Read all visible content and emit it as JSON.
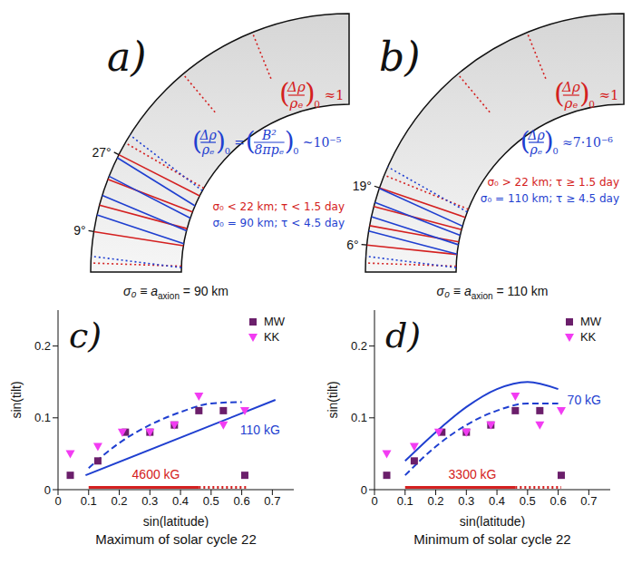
{
  "diagrams": [
    {
      "letter": "a)",
      "latitudes": [
        {
          "value": 27,
          "label": "27°"
        },
        {
          "value": 9,
          "label": "9°"
        }
      ],
      "formulas": [
        {
          "color": "#d42020",
          "terms": [
            {
              "num": "Δρ",
              "den": "ρₑ",
              "sub": "0"
            },
            "≈1"
          ]
        },
        {
          "color": "#1f3fd0",
          "terms": [
            {
              "num": "Δρ",
              "den": "ρₑ",
              "sub": "0"
            },
            "=",
            {
              "num": "B²",
              "den": "8πpₑ",
              "sub": "0"
            },
            "~10⁻⁵"
          ]
        }
      ],
      "notes": [
        {
          "text": "σ₀ < 22 km; τ < 1.5 day",
          "color": "#d42020"
        },
        {
          "text": "σ₀ = 90 km; τ < 4.5 day",
          "color": "#1f3fd0"
        }
      ]
    },
    {
      "letter": "b)",
      "latitudes": [
        {
          "value": 19,
          "label": "19°"
        },
        {
          "value": 6,
          "label": "6°"
        }
      ],
      "formulas": [
        {
          "color": "#d42020",
          "terms": [
            {
              "num": "Δρ",
              "den": "ρₑ",
              "sub": "0"
            },
            "≈1"
          ]
        },
        {
          "color": "#1f3fd0",
          "terms": [
            {
              "num": "Δρ",
              "den": "ρₑ",
              "sub": "0"
            },
            "≈7·10⁻⁶"
          ]
        }
      ],
      "notes": [
        {
          "text": "σ₀ > 22 km; τ ≥ 1.5 day",
          "color": "#d42020"
        },
        {
          "text": "σ₀ = 110 km; τ ≥ 4.5 day",
          "color": "#1f3fd0"
        }
      ]
    }
  ],
  "chart_data": [
    {
      "type": "scatter",
      "letter": "c)",
      "title": {
        "main": "σ₀ ≡ a",
        "sub": "axion",
        "tail": " = 90 km"
      },
      "caption": "Maximum of solar cycle 22",
      "x_label": "sin(latitude)",
      "y_label": "sin(tilt)",
      "xlim": [
        0,
        0.77
      ],
      "xticks": [
        0,
        0.1,
        0.2,
        0.3,
        0.4,
        0.5,
        0.6,
        0.7
      ],
      "ylim": [
        0,
        0.25
      ],
      "yticks": [
        0,
        0.1,
        0.2
      ],
      "legend": "top-right",
      "series": [
        {
          "name": "MW",
          "type": "scatter",
          "marker": "square",
          "color": "#6b1f6b",
          "x": [
            0.04,
            0.13,
            0.22,
            0.3,
            0.38,
            0.46,
            0.54,
            0.61
          ],
          "values": [
            0.02,
            0.04,
            0.08,
            0.08,
            0.09,
            0.11,
            0.11,
            0.02
          ]
        },
        {
          "name": "KK",
          "type": "scatter",
          "marker": "triangle-down",
          "color": "#f23cf2",
          "x": [
            0.04,
            0.13,
            0.21,
            0.3,
            0.38,
            0.46,
            0.54,
            0.61
          ],
          "values": [
            0.05,
            0.06,
            0.08,
            0.08,
            0.09,
            0.13,
            0.09,
            0.11
          ]
        },
        {
          "type": "line",
          "line_style": "dashed",
          "color": "#1f3fd0",
          "x": [
            0.1,
            0.2,
            0.3,
            0.4,
            0.5,
            0.6
          ],
          "values": [
            0.03,
            0.065,
            0.09,
            0.108,
            0.12,
            0.122
          ]
        },
        {
          "type": "line",
          "line_style": "solid",
          "color": "#1f3fd0",
          "x": [
            0.09,
            0.71
          ],
          "values": [
            0.02,
            0.125
          ]
        },
        {
          "type": "line",
          "line_style": "solid",
          "color": "#d42020",
          "x": [
            0.1,
            0.46
          ],
          "values": [
            0.003,
            0.003
          ]
        },
        {
          "type": "line",
          "line_style": "dotted",
          "color": "#d42020",
          "x": [
            0.46,
            0.62
          ],
          "values": [
            0.003,
            0.003
          ]
        }
      ],
      "annotations": [
        {
          "text": "110 kG",
          "x": 0.66,
          "y": 0.083,
          "color": "#1f3fd0"
        },
        {
          "text": "4600 kG",
          "x": 0.32,
          "y": 0.022,
          "color": "#d42020"
        }
      ]
    },
    {
      "type": "scatter",
      "letter": "d)",
      "title": {
        "main": "σ₀ ≡ a",
        "sub": "axion",
        "tail": " = 110 km"
      },
      "caption": "Minimum of solar cycle 22",
      "x_label": "sin(latitude)",
      "y_label": "sin(tilt)",
      "xlim": [
        0,
        0.77
      ],
      "xticks": [
        0,
        0.1,
        0.2,
        0.3,
        0.4,
        0.5,
        0.6,
        0.7
      ],
      "ylim": [
        0,
        0.25
      ],
      "yticks": [
        0,
        0.1,
        0.2
      ],
      "legend": "top-right",
      "series": [
        {
          "name": "MW",
          "type": "scatter",
          "marker": "square",
          "color": "#6b1f6b",
          "x": [
            0.04,
            0.13,
            0.22,
            0.3,
            0.38,
            0.46,
            0.54,
            0.61
          ],
          "values": [
            0.02,
            0.04,
            0.08,
            0.08,
            0.09,
            0.11,
            0.11,
            0.02
          ]
        },
        {
          "name": "KK",
          "type": "scatter",
          "marker": "triangle-down",
          "color": "#f23cf2",
          "x": [
            0.04,
            0.13,
            0.21,
            0.3,
            0.38,
            0.46,
            0.54,
            0.61
          ],
          "values": [
            0.05,
            0.06,
            0.08,
            0.08,
            0.09,
            0.13,
            0.09,
            0.11
          ]
        },
        {
          "type": "line",
          "line_style": "dashed",
          "color": "#1f3fd0",
          "x": [
            0.1,
            0.2,
            0.3,
            0.4,
            0.5,
            0.6
          ],
          "values": [
            0.02,
            0.06,
            0.09,
            0.11,
            0.12,
            0.12
          ]
        },
        {
          "type": "line",
          "line_style": "solid",
          "color": "#1f3fd0",
          "x": [
            0.1,
            0.2,
            0.3,
            0.4,
            0.5,
            0.6
          ],
          "values": [
            0.04,
            0.08,
            0.115,
            0.14,
            0.15,
            0.14
          ]
        },
        {
          "type": "line",
          "line_style": "solid",
          "color": "#d42020",
          "x": [
            0.1,
            0.46
          ],
          "values": [
            0.003,
            0.003
          ]
        },
        {
          "type": "line",
          "line_style": "dotted",
          "color": "#d42020",
          "x": [
            0.46,
            0.61
          ],
          "values": [
            0.003,
            0.003
          ]
        }
      ],
      "annotations": [
        {
          "text": "70 kG",
          "x": 0.685,
          "y": 0.125,
          "color": "#1f3fd0"
        },
        {
          "text": "3300 kG",
          "x": 0.32,
          "y": 0.022,
          "color": "#d42020"
        }
      ]
    }
  ]
}
